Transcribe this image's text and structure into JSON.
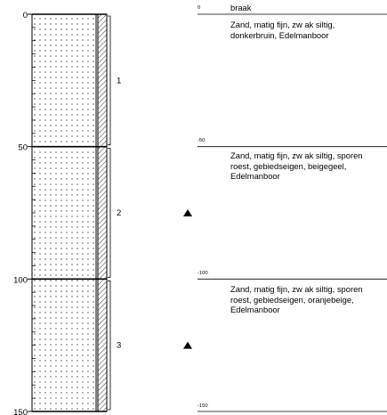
{
  "log": {
    "depth_scale": {
      "max": 150,
      "ticks": [
        0,
        50,
        100,
        150
      ]
    },
    "layers": [
      {
        "number": "1",
        "top": 0,
        "bottom": 50
      },
      {
        "number": "2",
        "top": 50,
        "bottom": 100
      },
      {
        "number": "3",
        "top": 100,
        "bottom": 150
      }
    ],
    "markers": [
      {
        "depth": 75
      },
      {
        "depth": 125
      }
    ]
  },
  "surface_label": "braak",
  "depth_labels": [
    "0",
    "-50",
    "-100",
    "-150"
  ],
  "descriptions": [
    "Zand, matig fijn, zw ak siltig,\ndonkerbruin, Edelmanboor",
    "Zand, matig fijn, zw ak siltig, sporen\nroest, gebiedseigen, beigegeel,\nEdelmanboor",
    "Zand, matig fijn, zw ak siltig, sporen\nroest, gebiedseigen, oranjebeige,\nEdelmanboor"
  ]
}
